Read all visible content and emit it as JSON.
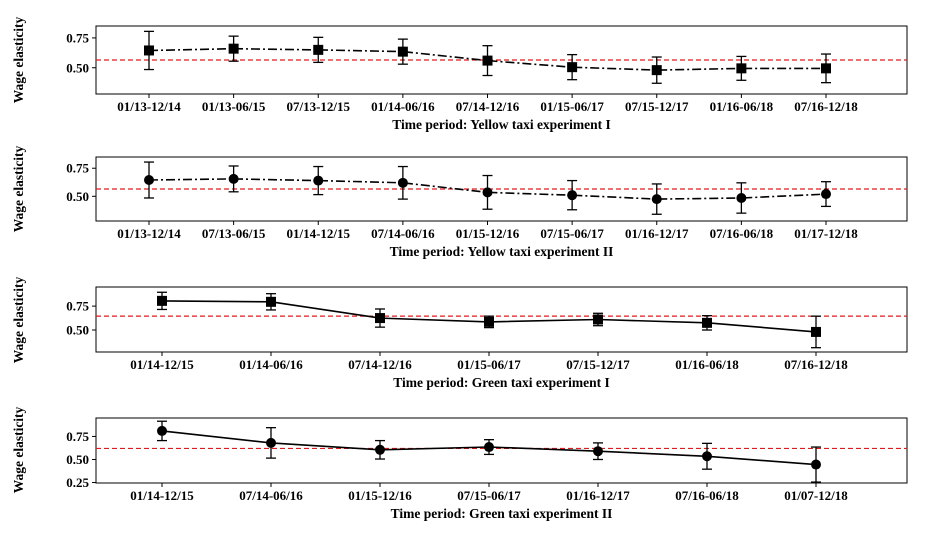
{
  "chart_data": [
    {
      "type": "line",
      "marker": "square",
      "line_style": "dashdot",
      "xlabel": "Time period: Yellow taxi experiment I",
      "ylabel": "Wage elasticity",
      "categories": [
        "01/13-12/14",
        "01/13-06/15",
        "07/13-12/15",
        "01/14-06/16",
        "07/14-12/16",
        "01/15-06/17",
        "07/15-12/17",
        "01/16-06/18",
        "07/16-12/18"
      ],
      "values": [
        0.645,
        0.66,
        0.65,
        0.635,
        0.56,
        0.505,
        0.48,
        0.495,
        0.495
      ],
      "error": [
        0.16,
        0.105,
        0.105,
        0.105,
        0.125,
        0.105,
        0.11,
        0.1,
        0.12
      ],
      "reference_line": 0.565,
      "yticks": [
        0.5,
        0.75
      ],
      "ytick_labels": [
        "0.50",
        "0.75"
      ],
      "ylim": [
        0.28,
        0.85
      ]
    },
    {
      "type": "line",
      "marker": "circle",
      "line_style": "dashdot",
      "xlabel": "Time period: Yellow taxi experiment II",
      "ylabel": "Wage elasticity",
      "categories": [
        "01/13-12/14",
        "07/13-06/15",
        "01/14-12/15",
        "07/14-06/16",
        "01/15-12/16",
        "07/15-06/17",
        "01/16-12/17",
        "07/16-06/18",
        "01/17-12/18"
      ],
      "values": [
        0.645,
        0.655,
        0.64,
        0.62,
        0.535,
        0.51,
        0.475,
        0.485,
        0.52
      ],
      "error": [
        0.16,
        0.115,
        0.125,
        0.145,
        0.15,
        0.13,
        0.135,
        0.135,
        0.11
      ],
      "reference_line": 0.565,
      "yticks": [
        0.5,
        0.75
      ],
      "ytick_labels": [
        "0.50",
        "0.75"
      ],
      "ylim": [
        0.28,
        0.85
      ]
    },
    {
      "type": "line",
      "marker": "square",
      "line_style": "solid",
      "xlabel": "Time period: Green taxi experiment I",
      "ylabel": "Wage elasticity",
      "categories": [
        "01/14-12/15",
        "01/14-06/16",
        "07/14-12/16",
        "01/15-06/17",
        "07/15-12/17",
        "01/16-06/18",
        "07/16-12/18"
      ],
      "values": [
        0.805,
        0.795,
        0.625,
        0.585,
        0.61,
        0.575,
        0.48
      ],
      "error": [
        0.09,
        0.085,
        0.095,
        0.06,
        0.065,
        0.075,
        0.165
      ],
      "reference_line": 0.645,
      "yticks": [
        0.5,
        0.75
      ],
      "ytick_labels": [
        "0.50",
        "0.75"
      ],
      "ylim": [
        0.27,
        0.95
      ]
    },
    {
      "type": "line",
      "marker": "circle",
      "line_style": "solid",
      "xlabel": "Time period: Green taxi experiment II",
      "ylabel": "Wage elasticity",
      "categories": [
        "01/14-12/15",
        "07/14-06/16",
        "01/15-12/16",
        "07/15-06/17",
        "01/16-12/17",
        "07/16-06/18",
        "01/07-12/18"
      ],
      "values": [
        0.81,
        0.68,
        0.605,
        0.635,
        0.59,
        0.535,
        0.445
      ],
      "error": [
        0.105,
        0.165,
        0.1,
        0.08,
        0.09,
        0.14,
        0.19
      ],
      "reference_line": 0.62,
      "yticks": [
        0.25,
        0.5,
        0.75
      ],
      "ytick_labels": [
        "0.25",
        "0.50",
        "0.75"
      ],
      "ylim": [
        0.245,
        0.95
      ]
    }
  ],
  "colors": {
    "series": "#000000",
    "reference_line": "#e31a1c",
    "axes": "#000000"
  }
}
